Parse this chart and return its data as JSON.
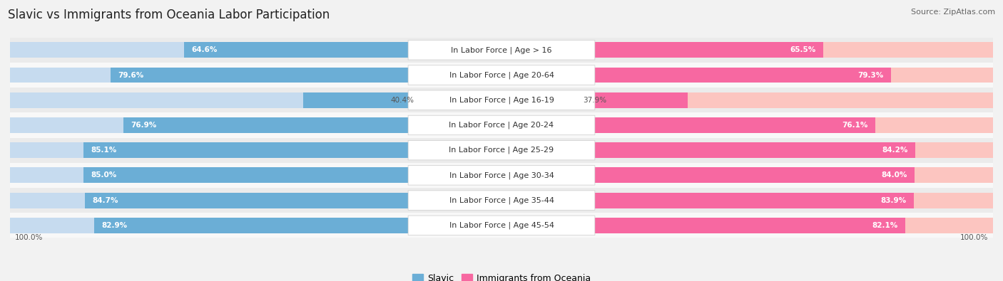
{
  "title": "Slavic vs Immigrants from Oceania Labor Participation",
  "source": "Source: ZipAtlas.com",
  "categories": [
    "In Labor Force | Age > 16",
    "In Labor Force | Age 20-64",
    "In Labor Force | Age 16-19",
    "In Labor Force | Age 20-24",
    "In Labor Force | Age 25-29",
    "In Labor Force | Age 30-34",
    "In Labor Force | Age 35-44",
    "In Labor Force | Age 45-54"
  ],
  "slavic_values": [
    64.6,
    79.6,
    40.4,
    76.9,
    85.1,
    85.0,
    84.7,
    82.9
  ],
  "oceania_values": [
    65.5,
    79.3,
    37.9,
    76.1,
    84.2,
    84.0,
    83.9,
    82.1
  ],
  "slavic_color": "#6baed6",
  "slavic_color_light": "#c6dbef",
  "oceania_color": "#f768a1",
  "oceania_color_light": "#fcc5c0",
  "bg_color": "#f2f2f2",
  "row_bg_even": "#ebebeb",
  "row_bg_odd": "#f8f8f8",
  "max_value": 100.0,
  "bar_height": 0.62,
  "title_fontsize": 12,
  "label_fontsize": 8.0,
  "value_fontsize": 7.5,
  "legend_fontsize": 9,
  "source_fontsize": 8
}
